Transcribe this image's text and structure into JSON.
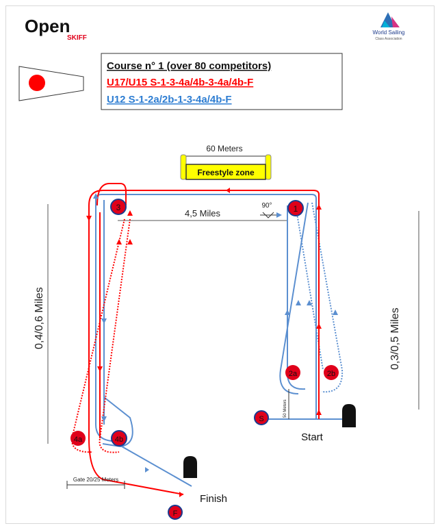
{
  "logo": {
    "brand": "Open",
    "sub": "SKIFF"
  },
  "partner_logo": {
    "line1": "World Sailing",
    "line2": "Class Association"
  },
  "course_box": {
    "title": "Course n° 1  (over 80 competitors)",
    "red_line": "U17/U15   S-1-3-4a/4b-3-4a/4b-F",
    "blue_line": "U12  S-1-2a/2b-1-3-4a/4b-F"
  },
  "annotations": {
    "width_top": "60 Meters",
    "freestyle": "Freestyle zone",
    "leg_distance": "4,5 Miles",
    "angle": "90°",
    "left_distance": "0,4/0,6 Miles",
    "right_distance": "0,3/0,5 Miles",
    "start_offset": "50 Meters",
    "gate": "Gate 20/25 Meters",
    "start": "Start",
    "finish": "Finish"
  },
  "marks": [
    "3",
    "1",
    "2a",
    "2b",
    "4a",
    "4b",
    "S",
    "F"
  ],
  "colors": {
    "red": "#ff0000",
    "blue": "#5b8fd0",
    "mark": "#e0001a",
    "freestyle_fill": "#ffff00"
  }
}
